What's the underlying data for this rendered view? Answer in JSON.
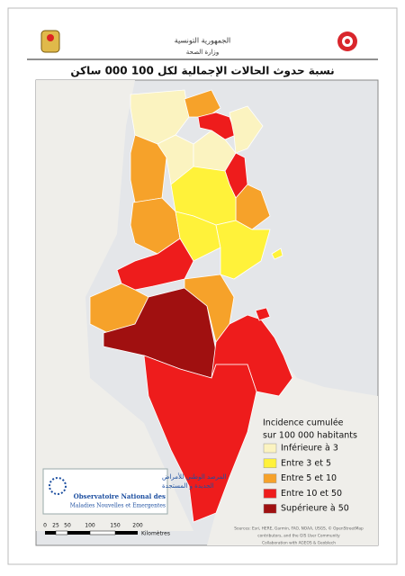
{
  "header": {
    "country": "الجمهورية التونسية",
    "ministry": "وزارة الصحة"
  },
  "title": "نسبة حدوث الحالات الإجمالية لكل 100 000 ساكن",
  "legend": {
    "title_line1": "Incidence cumulée",
    "title_line2": "sur 100 000 habitants",
    "items": [
      {
        "label": "Inférieure à 3",
        "color": "#fbf3c0"
      },
      {
        "label": "Entre 3 et 5",
        "color": "#fff23a"
      },
      {
        "label": "Entre 5 et 10",
        "color": "#f6a22a"
      },
      {
        "label": "Entre 10 et 50",
        "color": "#ee1c1c"
      },
      {
        "label": "Supérieure à 50",
        "color": "#a01010"
      }
    ]
  },
  "logo": {
    "arabic_line1": "المرصد الوطني للأمراض",
    "arabic_line2": "الجديدة و المستجدة",
    "french_line1": "Observatoire National des",
    "french_line2": "Maladies Nouvelles et Emergentes"
  },
  "scale": {
    "labels": [
      "0",
      "25",
      "50",
      "100",
      "150",
      "200"
    ],
    "unit": "Kilomètres"
  },
  "sources": [
    "Sources: Esri, HERE, Garmin, FAO, NOAA, USGS, © OpenStreetMap",
    "contributors, and the GIS User Community",
    "Collaboration with AGEOS & Geoblech"
  ]
}
